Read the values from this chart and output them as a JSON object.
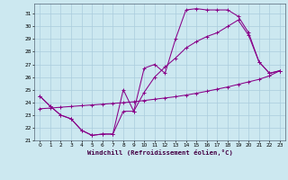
{
  "xlabel": "Windchill (Refroidissement éolien,°C)",
  "bg_color": "#cce8f0",
  "grid_color": "#aaccdd",
  "line_color": "#880088",
  "xlim": [
    -0.5,
    23.5
  ],
  "ylim": [
    21,
    31.8
  ],
  "xticks": [
    0,
    1,
    2,
    3,
    4,
    5,
    6,
    7,
    8,
    9,
    10,
    11,
    12,
    13,
    14,
    15,
    16,
    17,
    18,
    19,
    20,
    21,
    22,
    23
  ],
  "yticks": [
    21,
    22,
    23,
    24,
    25,
    26,
    27,
    28,
    29,
    30,
    31
  ],
  "line1_x": [
    0,
    1,
    2,
    3,
    4,
    5,
    6,
    7,
    8,
    9,
    10,
    11,
    12,
    13,
    14,
    15,
    16,
    17,
    18,
    19,
    20,
    21,
    22,
    23
  ],
  "line1_y": [
    24.5,
    23.7,
    23.0,
    22.7,
    21.8,
    21.4,
    21.5,
    21.5,
    25.0,
    23.3,
    26.7,
    27.0,
    26.3,
    29.0,
    31.3,
    31.4,
    31.3,
    31.3,
    31.3,
    30.8,
    29.5,
    27.2,
    26.3,
    26.5
  ],
  "line2_x": [
    0,
    1,
    2,
    3,
    4,
    5,
    6,
    7,
    8,
    9,
    10,
    11,
    12,
    13,
    14,
    15,
    16,
    17,
    18,
    19,
    20,
    21,
    22,
    23
  ],
  "line2_y": [
    24.5,
    23.7,
    23.0,
    22.7,
    21.8,
    21.4,
    21.5,
    21.5,
    23.3,
    23.3,
    24.8,
    26.0,
    26.8,
    27.5,
    28.3,
    28.8,
    29.2,
    29.5,
    30.0,
    30.5,
    29.3,
    27.2,
    26.3,
    26.5
  ],
  "line3_x": [
    0,
    1,
    2,
    3,
    4,
    5,
    6,
    7,
    8,
    9,
    10,
    11,
    12,
    13,
    14,
    15,
    16,
    17,
    18,
    19,
    20,
    21,
    22,
    23
  ],
  "line3_y": [
    23.5,
    23.55,
    23.62,
    23.68,
    23.74,
    23.8,
    23.86,
    23.92,
    23.98,
    24.05,
    24.15,
    24.25,
    24.35,
    24.45,
    24.58,
    24.72,
    24.88,
    25.05,
    25.22,
    25.42,
    25.62,
    25.82,
    26.1,
    26.5
  ]
}
